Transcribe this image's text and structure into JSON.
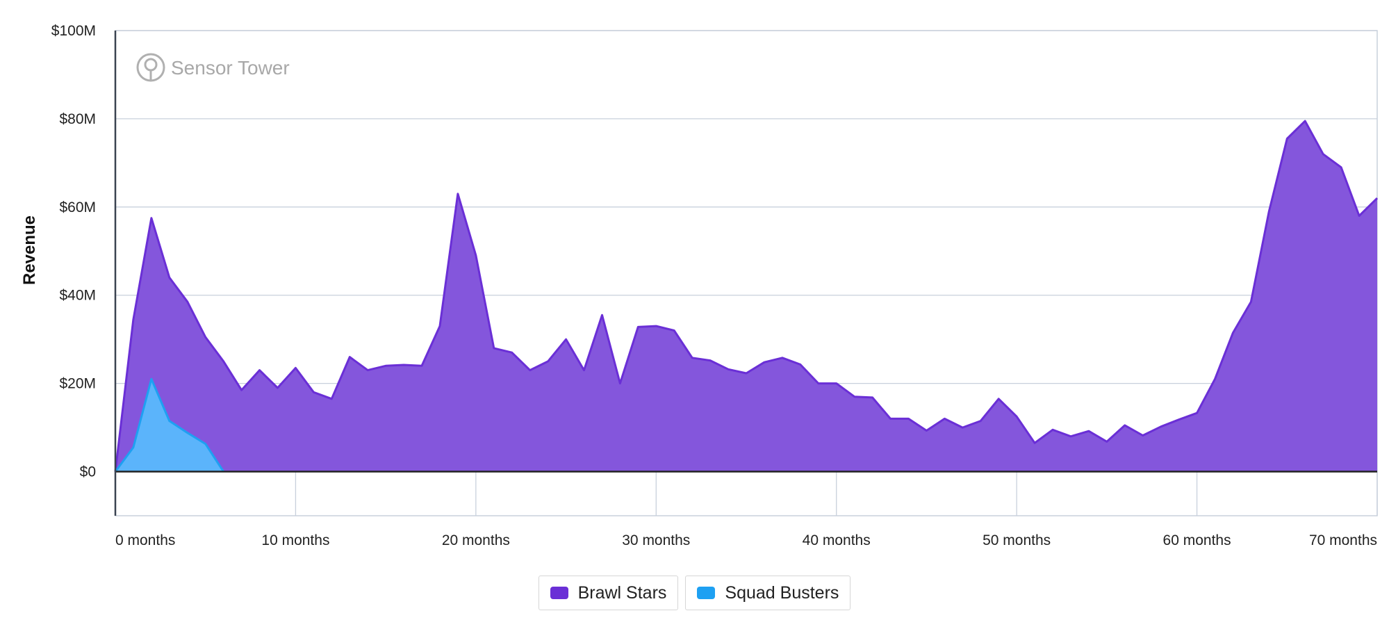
{
  "chart_data": {
    "type": "area",
    "ylabel": "Revenue",
    "xlabel": "",
    "y_ticks": [
      "$0",
      "$20M",
      "$40M",
      "$60M",
      "$80M",
      "$100M"
    ],
    "x_ticks": [
      "0 months",
      "10 months",
      "20 months",
      "30 months",
      "40 months",
      "50 months",
      "60 months",
      "70 months"
    ],
    "ylim": [
      -10,
      100
    ],
    "xlim": [
      0,
      70
    ],
    "grid": true,
    "legend_position": "bottom-center",
    "watermark": "Sensor Tower",
    "series": [
      {
        "name": "Brawl Stars",
        "color": "#6a2fd6",
        "fill": "#8456dc",
        "values": [
          0,
          34.5,
          57.5,
          44,
          38.5,
          30.5,
          25,
          18.5,
          23,
          19,
          23.5,
          18,
          16.5,
          26,
          23,
          24,
          24.2,
          24,
          33,
          63,
          49,
          28,
          27,
          23,
          25,
          30,
          23,
          35.5,
          20,
          32.8,
          33,
          32,
          25.8,
          25.2,
          23.2,
          22.3,
          24.8,
          25.8,
          24.3,
          20,
          20,
          17,
          16.8,
          12,
          12,
          9.3,
          12,
          10,
          11.5,
          16.5,
          12.5,
          6.5,
          9.5,
          8,
          9.2,
          6.8,
          10.5,
          8.2,
          10.2,
          11.8,
          13.3,
          21,
          31.5,
          38.5,
          59,
          75.5,
          79.5,
          72,
          69,
          58,
          62
        ]
      },
      {
        "name": "Squad Busters",
        "color": "#1ea0f2",
        "fill": "#5bb4fb",
        "values": [
          0,
          5.5,
          21,
          11.5,
          8.8,
          6.3,
          0
        ]
      }
    ]
  }
}
